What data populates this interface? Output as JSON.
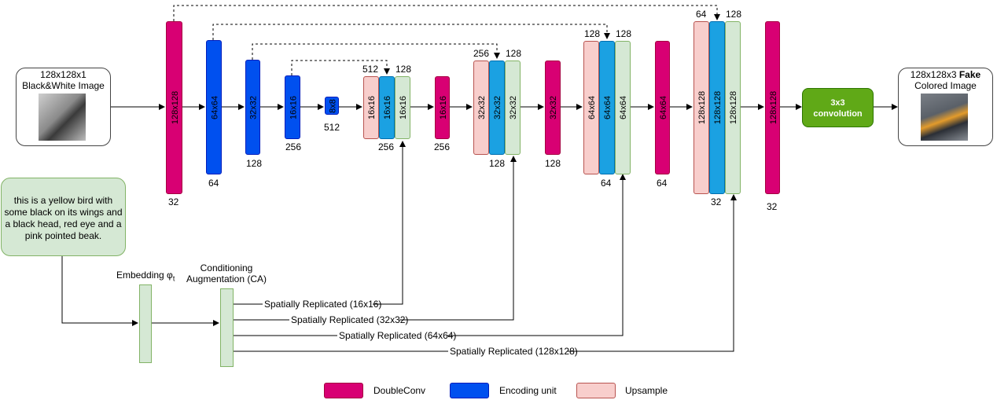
{
  "input": {
    "line1": "128x128x1",
    "line2": "Black&White Image"
  },
  "output": {
    "line1_a": "128x128x3 ",
    "line1_b": "Fake",
    "line2": "Colored Image"
  },
  "text_prompt": [
    "this is a yellow bird with",
    "some black on its wings and",
    "a black head, red eye and a",
    "pink pointed beak."
  ],
  "embedding_label": "Embedding φ",
  "embedding_sub": "t",
  "ca_label": [
    "Conditioning",
    "Augmentation (CA)"
  ],
  "conv": [
    "3x3",
    "convolution"
  ],
  "blocks": [
    {
      "text": "128x128",
      "count": "32"
    },
    {
      "text": "64x64",
      "count": "64"
    },
    {
      "text": "32x32",
      "count": "128"
    },
    {
      "text": "16x16",
      "count": "256"
    },
    {
      "text": "8x8",
      "count": "512"
    },
    {
      "up": "16x16",
      "enc": "16x16",
      "cond": "16x16",
      "top_a": "512",
      "top_b": "128",
      "count": "256"
    },
    {
      "text": "16x16",
      "count": "256"
    },
    {
      "up": "32x32",
      "enc": "32x32",
      "cond": "32x32",
      "top_a": "256",
      "top_b": "128",
      "count": "128"
    },
    {
      "text": "32x32",
      "count": "128"
    },
    {
      "up": "64x64",
      "enc": "64x64",
      "cond": "64x64",
      "top_a": "128",
      "top_b": "128",
      "count": "64"
    },
    {
      "text": "64x64",
      "count": "64"
    },
    {
      "up": "128x128",
      "enc": "128x128",
      "cond": "128x128",
      "top_a": "64",
      "top_b": "128",
      "count": "32"
    },
    {
      "text": "128x128",
      "count": "32"
    }
  ],
  "replicated": [
    "Spatially Replicated (16x16)",
    "Spatially Replicated (32x32)",
    "Spatially Replicated (64x64)",
    "Spatially Replicated (128x128)"
  ],
  "legend": [
    {
      "label": "DoubleConv",
      "color": "#d80073"
    },
    {
      "label": "Encoding unit",
      "color": "#0050ef"
    },
    {
      "label": "Upsample",
      "color": "#f8cecc"
    }
  ],
  "colors": {
    "doubleconv": "#d80073",
    "encoding": "#0050ef",
    "encoding_light": "#1ba1e2",
    "upsample": "#f8cecc",
    "condition": "#d5e8d4",
    "conv": "#60a917"
  }
}
